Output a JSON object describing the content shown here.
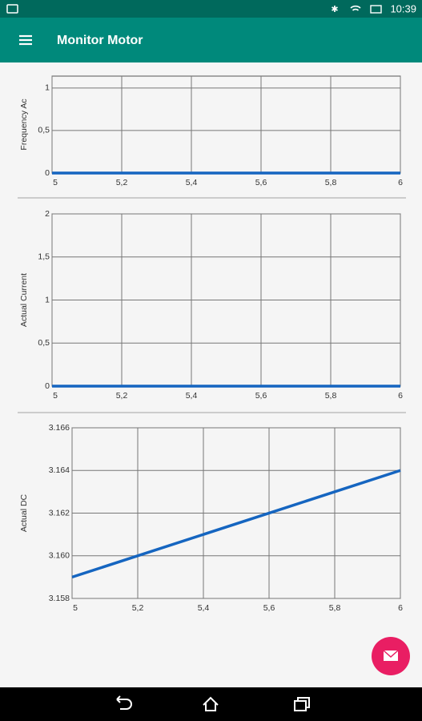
{
  "status_bar": {
    "time": "10:39"
  },
  "app_bar": {
    "title": "Monitor Motor"
  },
  "chart_data": [
    {
      "type": "line",
      "ylabel": "Frequency Ac",
      "x": [
        5,
        6
      ],
      "values": [
        0,
        0
      ],
      "color": "#1565c0",
      "xlim": [
        5,
        6
      ],
      "xticks": [
        5,
        {
          "value": 5.2,
          "label": "5,2"
        },
        {
          "value": 5.4,
          "label": "5,4"
        },
        {
          "value": 5.6,
          "label": "5,6"
        },
        {
          "value": 5.8,
          "label": "5,8"
        },
        6
      ],
      "ylim": [
        0,
        1.14
      ],
      "yticks": [
        0,
        {
          "value": 0.5,
          "label": "0,5"
        },
        1
      ],
      "grid": true
    },
    {
      "type": "line",
      "ylabel": "Actual Current",
      "x": [
        5,
        6
      ],
      "values": [
        0,
        0
      ],
      "color": "#1565c0",
      "xlim": [
        5,
        6
      ],
      "xticks": [
        5,
        {
          "value": 5.2,
          "label": "5,2"
        },
        {
          "value": 5.4,
          "label": "5,4"
        },
        {
          "value": 5.6,
          "label": "5,6"
        },
        {
          "value": 5.8,
          "label": "5,8"
        },
        6
      ],
      "ylim": [
        0,
        2
      ],
      "yticks": [
        0,
        {
          "value": 0.5,
          "label": "0,5"
        },
        1,
        {
          "value": 1.5,
          "label": "1,5"
        },
        2
      ],
      "grid": true
    },
    {
      "type": "line",
      "ylabel": "Actual DC",
      "x": [
        5,
        6
      ],
      "values": [
        3.159,
        3.164
      ],
      "color": "#1565c0",
      "xlim": [
        5,
        6
      ],
      "xticks": [
        5,
        {
          "value": 5.2,
          "label": "5,2"
        },
        {
          "value": 5.4,
          "label": "5,4"
        },
        {
          "value": 5.6,
          "label": "5,6"
        },
        {
          "value": 5.8,
          "label": "5,8"
        },
        6
      ],
      "ylim": [
        3.158,
        3.166
      ],
      "yticks": [
        3.158,
        {
          "value": 3.16,
          "label": "3.160"
        },
        3.162,
        3.164,
        3.166
      ],
      "grid": true
    }
  ]
}
